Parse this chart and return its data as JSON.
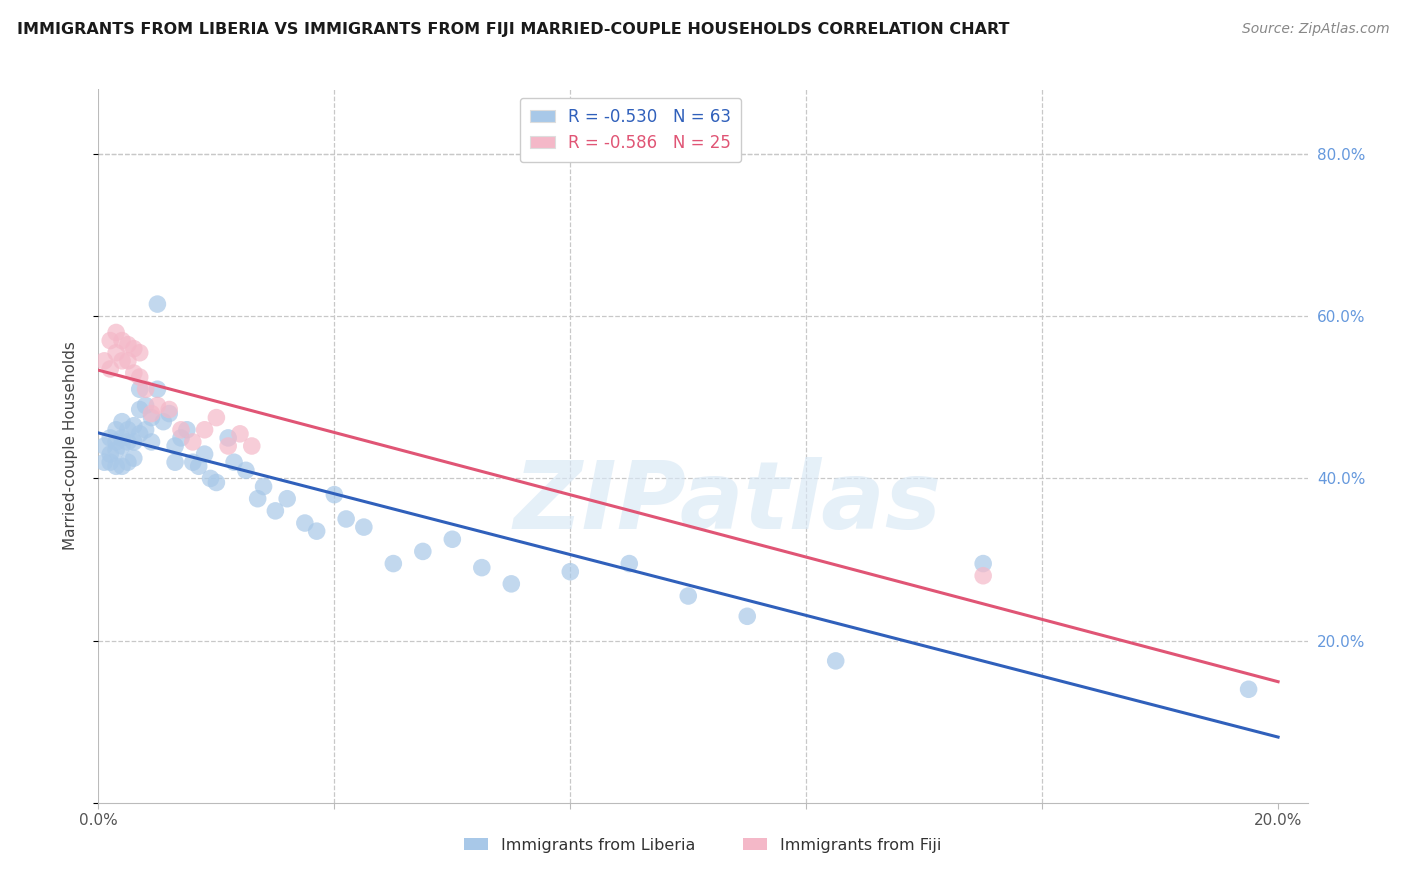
{
  "title": "IMMIGRANTS FROM LIBERIA VS IMMIGRANTS FROM FIJI MARRIED-COUPLE HOUSEHOLDS CORRELATION CHART",
  "source": "Source: ZipAtlas.com",
  "ylabel": "Married-couple Households",
  "xlim": [
    0.0,
    0.205
  ],
  "ylim": [
    0.0,
    0.88
  ],
  "legend_blue_label": "R = -0.530   N = 63",
  "legend_pink_label": "R = -0.586   N = 25",
  "legend_blue_series": "Immigrants from Liberia",
  "legend_pink_series": "Immigrants from Fiji",
  "blue_color": "#A8C8E8",
  "pink_color": "#F4B8C8",
  "blue_line_color": "#3060BB",
  "pink_line_color": "#E05575",
  "watermark_text": "ZIPatlas",
  "background_color": "#FFFFFF",
  "grid_color": "#C8C8C8",
  "liberia_x": [
    0.001,
    0.001,
    0.002,
    0.002,
    0.002,
    0.003,
    0.003,
    0.003,
    0.003,
    0.004,
    0.004,
    0.004,
    0.004,
    0.005,
    0.005,
    0.005,
    0.006,
    0.006,
    0.006,
    0.007,
    0.007,
    0.007,
    0.008,
    0.008,
    0.009,
    0.009,
    0.01,
    0.01,
    0.011,
    0.012,
    0.013,
    0.013,
    0.014,
    0.015,
    0.016,
    0.017,
    0.018,
    0.019,
    0.02,
    0.022,
    0.023,
    0.025,
    0.027,
    0.028,
    0.03,
    0.032,
    0.035,
    0.037,
    0.04,
    0.042,
    0.045,
    0.05,
    0.055,
    0.06,
    0.065,
    0.07,
    0.08,
    0.09,
    0.1,
    0.11,
    0.125,
    0.15,
    0.195
  ],
  "liberia_y": [
    0.44,
    0.42,
    0.45,
    0.43,
    0.42,
    0.46,
    0.445,
    0.435,
    0.415,
    0.47,
    0.45,
    0.44,
    0.415,
    0.46,
    0.445,
    0.42,
    0.465,
    0.445,
    0.425,
    0.51,
    0.485,
    0.455,
    0.49,
    0.46,
    0.475,
    0.445,
    0.615,
    0.51,
    0.47,
    0.48,
    0.44,
    0.42,
    0.45,
    0.46,
    0.42,
    0.415,
    0.43,
    0.4,
    0.395,
    0.45,
    0.42,
    0.41,
    0.375,
    0.39,
    0.36,
    0.375,
    0.345,
    0.335,
    0.38,
    0.35,
    0.34,
    0.295,
    0.31,
    0.325,
    0.29,
    0.27,
    0.285,
    0.295,
    0.255,
    0.23,
    0.175,
    0.295,
    0.14
  ],
  "fiji_x": [
    0.001,
    0.002,
    0.002,
    0.003,
    0.003,
    0.004,
    0.004,
    0.005,
    0.005,
    0.006,
    0.006,
    0.007,
    0.007,
    0.008,
    0.009,
    0.01,
    0.012,
    0.014,
    0.016,
    0.018,
    0.02,
    0.022,
    0.024,
    0.026,
    0.15
  ],
  "fiji_y": [
    0.545,
    0.57,
    0.535,
    0.58,
    0.555,
    0.57,
    0.545,
    0.565,
    0.545,
    0.56,
    0.53,
    0.555,
    0.525,
    0.51,
    0.48,
    0.49,
    0.485,
    0.46,
    0.445,
    0.46,
    0.475,
    0.44,
    0.455,
    0.44,
    0.28
  ]
}
